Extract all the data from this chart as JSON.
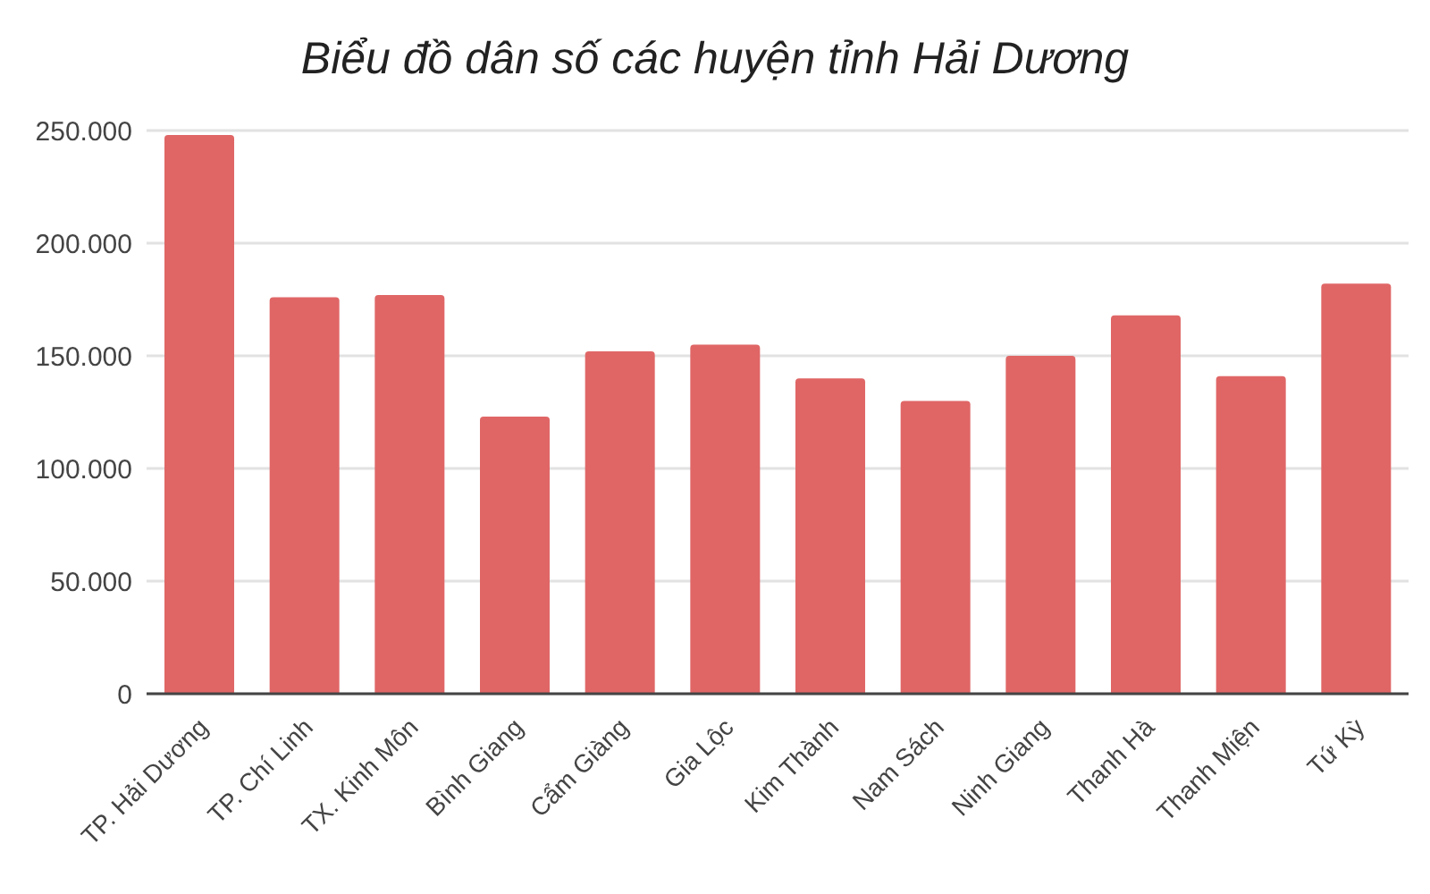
{
  "chart_data": {
    "type": "bar",
    "title": "Biểu đồ dân số các huyện tỉnh Hải Dương",
    "categories": [
      "TP. Hải Dương",
      "TP. Chí Linh",
      "TX. Kinh Môn",
      "Bình Giang",
      "Cẩm Giàng",
      "Gia Lộc",
      "Kim Thành",
      "Nam Sách",
      "Ninh Giang",
      "Thanh Hà",
      "Thanh Miện",
      "Tứ Kỳ"
    ],
    "values": [
      248000,
      176000,
      177000,
      123000,
      152000,
      155000,
      140000,
      130000,
      150000,
      168000,
      141000,
      182000
    ],
    "color": "#e06666",
    "ylim": [
      0,
      250000
    ],
    "yticks": [
      0,
      {
        "value": 50000,
        "label": "50.000"
      },
      {
        "value": 100000,
        "label": "100.000"
      },
      {
        "value": 150000,
        "label": "150.000"
      },
      {
        "value": 200000,
        "label": "200.000"
      },
      {
        "value": 250000,
        "label": "250.000"
      }
    ],
    "grid": "y"
  }
}
